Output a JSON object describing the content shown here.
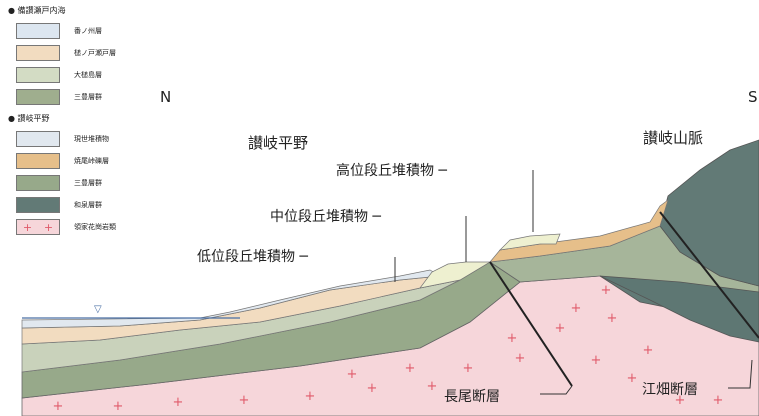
{
  "legend": {
    "setouchi_heading": "● 備讃瀬戸内海",
    "setouchi_units": [
      {
        "label": "番ノ州層",
        "color": "#dce6f0"
      },
      {
        "label": "槌ノ戸瀬戸層",
        "color": "#f2dcc0"
      },
      {
        "label": "大槌島層",
        "color": "#d3dcc4"
      },
      {
        "label": "三豊層群",
        "color": "#9fae8e"
      }
    ],
    "sanuki_heading": "● 讃岐平野",
    "sanuki_units": [
      {
        "label": "現世堆積物",
        "color": "#e1e8ef"
      },
      {
        "label": "焼尾峠礫層",
        "color": "#e6bf8a"
      },
      {
        "label": "三豊層群",
        "color": "#97a98a"
      },
      {
        "label": "和泉層群",
        "color": "#627a76"
      },
      {
        "label": "領家花崗岩類",
        "color": "#f6d6da",
        "symbol": "+"
      }
    ]
  },
  "section": {
    "north_label": "N",
    "south_label": "S",
    "plain_label": "讃岐平野",
    "mountains_label": "讃岐山脈",
    "high_terrace_label": "高位段丘堆積物 ─",
    "mid_terrace_label": "中位段丘堆積物 ─",
    "low_terrace_label": "低位段丘堆積物 ─",
    "nagao_fault_label": "長尾断層",
    "ebata_fault_label": "江畑断層",
    "sea_level_symbol": "▽",
    "granite_symbol": "+"
  },
  "colors": {
    "seawater": "#dfe8f1",
    "recent_deposits": "#e1e8ef",
    "mitoyo_group": "#97a98a",
    "izumi_group": "#627a76",
    "granite": "#f6d6da",
    "granite_cross": "#e05a6a",
    "gravel": "#e6bf8a",
    "terrace": "#eef0d0",
    "sea_level_line": "#4a6fa5"
  }
}
